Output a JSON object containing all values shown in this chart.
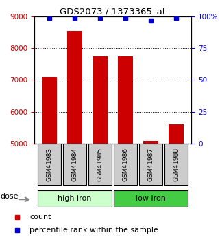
{
  "title": "GDS2073 / 1373365_at",
  "samples": [
    "GSM41983",
    "GSM41984",
    "GSM41985",
    "GSM41986",
    "GSM41987",
    "GSM41988"
  ],
  "counts": [
    7100,
    8550,
    7750,
    7750,
    5080,
    5600
  ],
  "percentiles": [
    99,
    99,
    99,
    99,
    97,
    99
  ],
  "ylim_left": [
    5000,
    9000
  ],
  "ylim_right": [
    0,
    100
  ],
  "yticks_left": [
    5000,
    6000,
    7000,
    8000,
    9000
  ],
  "yticks_right": [
    0,
    25,
    50,
    75,
    100
  ],
  "bar_color": "#cc0000",
  "square_color": "#0000cc",
  "groups": [
    {
      "label": "high iron",
      "indices": [
        0,
        1,
        2
      ],
      "color": "#ccffcc"
    },
    {
      "label": "low iron",
      "indices": [
        3,
        4,
        5
      ],
      "color": "#44cc44"
    }
  ],
  "label_box_color": "#cccccc",
  "legend_count_color": "#cc0000",
  "legend_pct_color": "#0000cc",
  "left_tick_color": "#cc0000",
  "right_tick_color": "#0000cc",
  "grid_color": "#000000",
  "bg_color": "#ffffff",
  "bar_width": 0.6
}
